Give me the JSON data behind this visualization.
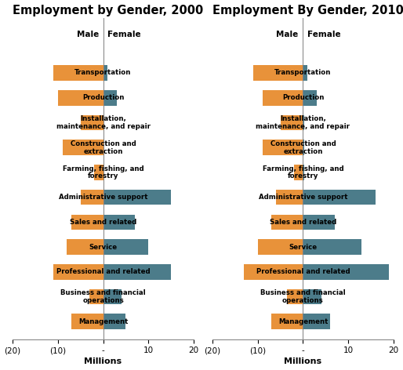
{
  "categories": [
    "Transportation",
    "Production",
    "Installation,\nmaintenance, and repair",
    "Construction and\nextraction",
    "Farming, fishing, and\nforestry",
    "Administrative support",
    "Sales and related",
    "Service",
    "Professional and related",
    "Business and financial\noperations",
    "Management"
  ],
  "year2000": {
    "male": [
      -11,
      -10,
      -5,
      -9,
      -2,
      -5,
      -7,
      -8,
      -11,
      -3,
      -7
    ],
    "female": [
      1.0,
      3.0,
      0.3,
      0.3,
      0.3,
      15.0,
      7.0,
      10.0,
      15.0,
      4.0,
      5.0
    ]
  },
  "year2010": {
    "male": [
      -11,
      -9,
      -5,
      -9,
      -2,
      -6,
      -7,
      -10,
      -13,
      -3.5,
      -7
    ],
    "female": [
      1.0,
      3.0,
      0.3,
      0.3,
      0.3,
      16.0,
      7.0,
      13.0,
      19.0,
      4.0,
      6.0
    ]
  },
  "title2000": "Employment by Gender, 2000",
  "title2010": "Employment By Gender, 2010",
  "xlabel": "Millions",
  "male_color": "#E8923A",
  "female_color": "#4C7C8A",
  "xlim": [
    -20,
    20
  ],
  "xticks": [
    -20,
    -10,
    0,
    10,
    20
  ],
  "xticklabels": [
    "(20)",
    "(10)",
    "-",
    "10",
    "20"
  ],
  "bar_height": 0.62,
  "title_fontsize": 10.5,
  "cat_fontsize": 6.2,
  "tick_fontsize": 7.5,
  "header_fontsize": 7.5,
  "xlabel_fontsize": 8,
  "background_color": "#ffffff"
}
